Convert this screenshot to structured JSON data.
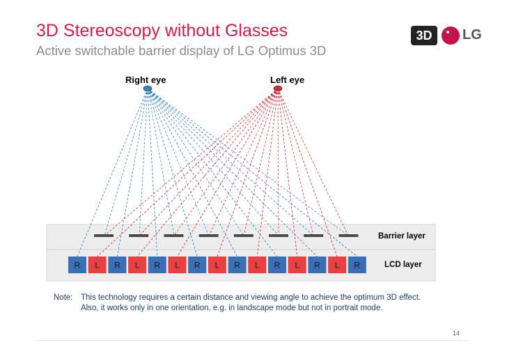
{
  "header": {
    "title": "3D Stereoscopy without Glasses",
    "subtitle": "Active switchable barrier display of LG Optimus 3D"
  },
  "logo": {
    "badge": "3D",
    "brand": "LG"
  },
  "eyes": {
    "right_label": "Right eye",
    "left_label": "Left eye"
  },
  "layers": {
    "barrier_label": "Barrier layer",
    "lcd_label": "LCD layer"
  },
  "pixels": [
    "R",
    "L",
    "R",
    "L",
    "R",
    "L",
    "R",
    "L",
    "R",
    "L",
    "R",
    "L",
    "R",
    "L",
    "R"
  ],
  "colors": {
    "right_eye": "#2e86c8",
    "left_eye": "#d62a32",
    "red_cell": "#e84040",
    "blue_cell": "#3a6fb8"
  },
  "note": {
    "prefix": "Note:",
    "line1": "This technology requires a certain distance and viewing angle to achieve the optimum 3D effect.",
    "line2": "Also, it works only in one orientation, e.g. in landscape mode but not in portrait mode."
  },
  "page_number": "14"
}
